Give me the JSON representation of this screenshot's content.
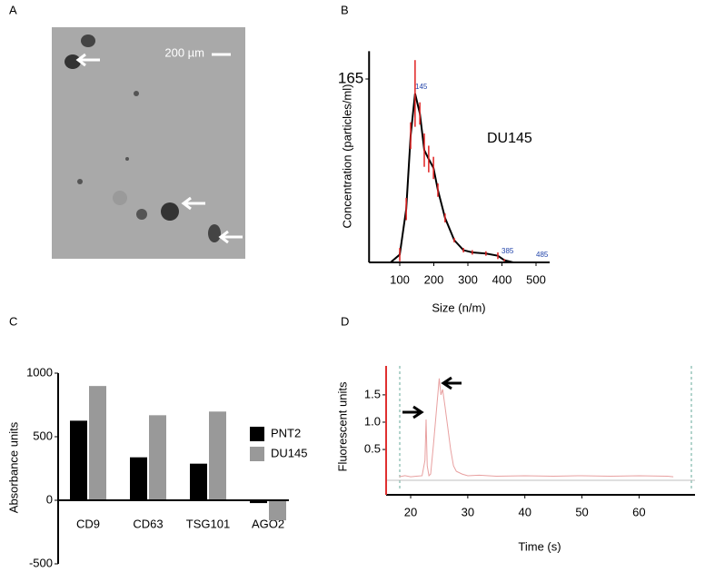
{
  "chart_data": [
    {
      "type": "image",
      "label": "A",
      "scale_bar": "200 µm"
    },
    {
      "type": "line",
      "label": "B",
      "ylabel": "Concentration (particles/ml)",
      "xlabel": "Size (n/m)",
      "annotations": [
        "145",
        "385",
        "485",
        "DU145"
      ],
      "x": [
        73,
        100,
        119,
        132,
        145,
        159,
        172,
        185,
        199,
        212,
        233,
        260,
        287,
        313,
        353,
        388,
        407,
        433,
        527
      ],
      "values": [
        0,
        7,
        48,
        114,
        152,
        134,
        101,
        93,
        85,
        65,
        40,
        20,
        11,
        9,
        8,
        6,
        2,
        0,
        0
      ],
      "errors": [
        0,
        6,
        10,
        12,
        30,
        10,
        15,
        12,
        10,
        6,
        4,
        2,
        2,
        2,
        2,
        3,
        1,
        0,
        0
      ],
      "color": "#000000",
      "error_color": "#e02020",
      "xlim": [
        10,
        540
      ],
      "ylim": [
        0,
        190
      ],
      "xticks": [
        100,
        200,
        300,
        400,
        500
      ],
      "yticks": [
        165
      ]
    },
    {
      "type": "bar",
      "label": "C",
      "ylabel": "Absorbance units",
      "categories": [
        "CD9",
        "CD63",
        "TSG101",
        "AGO2"
      ],
      "series": [
        {
          "name": "PNT2",
          "color": "#000000",
          "values": [
            626,
            338,
            288,
            -22
          ]
        },
        {
          "name": "DU145",
          "color": "#999999",
          "values": [
            899,
            669,
            698,
            -158
          ]
        }
      ],
      "ylim": [
        -500,
        1000
      ],
      "yticks": [
        -500,
        0,
        500,
        1000
      ]
    },
    {
      "type": "line",
      "label": "D",
      "ylabel": "Fluorescent units",
      "xlabel": "Time (s)",
      "x": [
        18,
        19,
        20,
        21,
        22,
        22.5,
        22.7,
        22.9,
        23.2,
        23.5,
        24,
        24.5,
        25,
        25.3,
        25.6,
        26,
        26.5,
        27,
        27.5,
        28,
        29,
        30,
        32,
        35,
        40,
        45,
        50,
        55,
        60,
        65,
        66
      ],
      "values": [
        0,
        0.02,
        0,
        0.01,
        0.02,
        0.3,
        1.05,
        0.2,
        0.02,
        0.05,
        0.6,
        1.2,
        1.8,
        1.5,
        1.6,
        1.3,
        0.9,
        0.5,
        0.2,
        0.1,
        0.05,
        0.02,
        0.03,
        0.01,
        0.02,
        0.01,
        0.02,
        0.01,
        0.02,
        0.01,
        0
      ],
      "color": "#e8a0a0",
      "xlim": [
        15.7,
        69.8
      ],
      "ylim": [
        -0.33,
        2.03
      ],
      "xticks": [
        20,
        30,
        40,
        50,
        60
      ],
      "yticks": [
        0.5,
        {
          "value": 1,
          "label": "1.0"
        },
        1.5
      ]
    }
  ]
}
